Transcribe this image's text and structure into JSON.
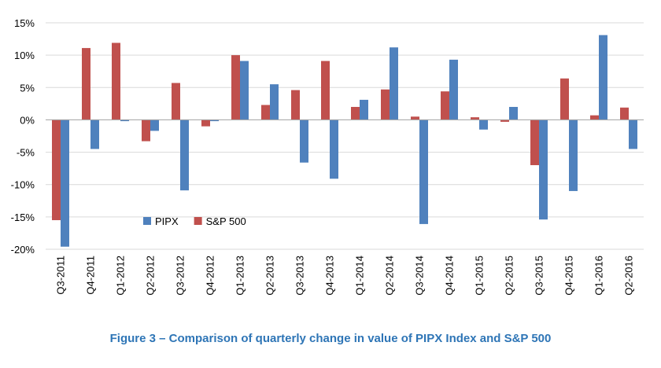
{
  "chart_data": {
    "type": "bar",
    "categories": [
      "Q3-2011",
      "Q4-2011",
      "Q1-2012",
      "Q2-2012",
      "Q3-2012",
      "Q4-2012",
      "Q1-2013",
      "Q2-2013",
      "Q3-2013",
      "Q4-2013",
      "Q1-2014",
      "Q2-2014",
      "Q3-2014",
      "Q4-2014",
      "Q1-2015",
      "Q2-2015",
      "Q3-2015",
      "Q4-2015",
      "Q1-2016",
      "Q2-2016"
    ],
    "series": [
      {
        "name": "S&P 500",
        "color": "#c0504d",
        "values": [
          -15.5,
          11.1,
          11.9,
          -3.3,
          5.7,
          -1.0,
          10.0,
          2.3,
          4.6,
          9.1,
          2.0,
          4.7,
          0.5,
          4.4,
          0.4,
          -0.3,
          -7.0,
          6.4,
          0.7,
          1.9
        ]
      },
      {
        "name": "PIPX",
        "color": "#4f81bd",
        "values": [
          -19.6,
          -4.5,
          -0.2,
          -1.7,
          -10.9,
          -0.2,
          9.1,
          5.5,
          -6.6,
          -9.1,
          3.1,
          11.2,
          -16.1,
          9.3,
          -1.5,
          2.0,
          -15.4,
          -11.0,
          13.1,
          -4.5
        ]
      }
    ],
    "series_order": [
      "S&P 500",
      "PIPX"
    ],
    "legend": [
      "PIPX",
      "S&P 500"
    ],
    "ylim": [
      -20,
      15
    ],
    "yticks": [
      -20,
      -15,
      -10,
      -5,
      0,
      5,
      10,
      15
    ],
    "ytick_labels": [
      "-20%",
      "-15%",
      "-10%",
      "-5%",
      "0%",
      "5%",
      "10%",
      "15%"
    ],
    "grid": true,
    "legend_position": "lower-left",
    "title": "",
    "xlabel": "",
    "ylabel": ""
  },
  "caption": "Figure 3 – Comparison of quarterly change in value of PIPX Index and S&P 500"
}
